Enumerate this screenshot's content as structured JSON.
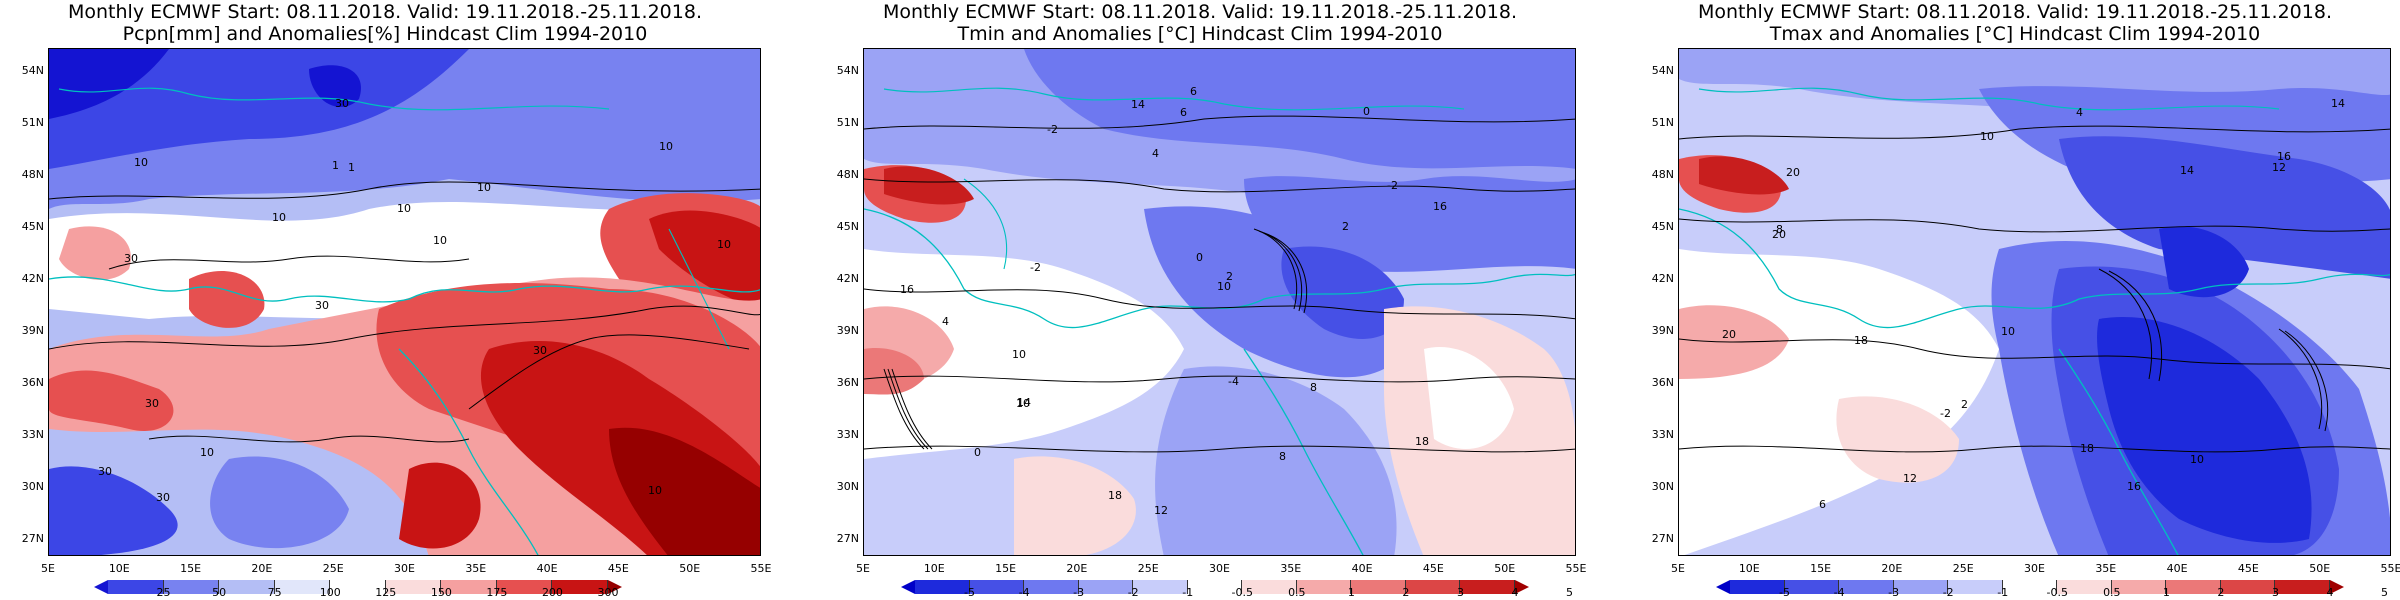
{
  "panels": [
    {
      "title1": "Monthly ECMWF Start: 08.11.2018. Valid: 19.11.2018.-25.11.2018.",
      "title2": "Pcpn[mm] and Anomalies[%] Hindcast Clim 1994-2010",
      "legend_values": [
        "25",
        "50",
        "75",
        "100",
        "125",
        "150",
        "175",
        "200",
        "300"
      ],
      "legend_colors": [
        "#1414d2",
        "#3c46e6",
        "#7882f0",
        "#b4bef5",
        "#e1e6fa",
        "#ffffff",
        "#fadcdc",
        "#f5a0a0",
        "#e65050",
        "#c81414",
        "#960000"
      ],
      "contour_labels": [
        "10",
        "30",
        "10",
        "30",
        "10",
        "30",
        "1",
        "10",
        "30",
        "10",
        "30",
        "10",
        "1",
        "10",
        "30",
        "10",
        "30",
        "10"
      ]
    },
    {
      "title1": "Monthly ECMWF Start: 08.11.2018. Valid: 19.11.2018.-25.11.2018.",
      "title2": "Tmin and Anomalies [°C] Hindcast Clim 1994-2010",
      "legend_values": [
        "-5",
        "-4",
        "-3",
        "-2",
        "-1",
        "-0.5",
        "0.5",
        "1",
        "2",
        "3",
        "4",
        "5"
      ],
      "legend_colors": [
        "#0000c8",
        "#1e2adc",
        "#4650e6",
        "#6e78f0",
        "#9ba3f5",
        "#c8cdfa",
        "#ffffff",
        "#fadcdc",
        "#f5aaaa",
        "#eb7878",
        "#dc4646",
        "#c81e1e",
        "#a00000"
      ],
      "contour_labels": [
        "0",
        "0",
        "-2",
        "-2",
        "-4",
        "-2",
        "10",
        "14",
        "16",
        "2",
        "4",
        "6",
        "8",
        "10",
        "12",
        "14",
        "18",
        "16",
        "10",
        "18",
        "8",
        "6",
        "4",
        "2",
        "0"
      ]
    },
    {
      "title1": "Monthly ECMWF Start: 08.11.2018. Valid: 19.11.2018.-25.11.2018.",
      "title2": "Tmax and Anomalies [°C] Hindcast Clim 1994-2010",
      "legend_values": [
        "-5",
        "-4",
        "-3",
        "-2",
        "-1",
        "-0.5",
        "0.5",
        "1",
        "2",
        "3",
        "4",
        "5"
      ],
      "legend_colors": [
        "#0000c8",
        "#1e2adc",
        "#4650e6",
        "#6e78f0",
        "#9ba3f5",
        "#c8cdfa",
        "#ffffff",
        "#fadcdc",
        "#f5aaaa",
        "#eb7878",
        "#dc4646",
        "#c81e1e",
        "#a00000"
      ],
      "contour_labels": [
        "-2",
        "2",
        "4",
        "6",
        "10",
        "12",
        "14",
        "16",
        "18",
        "20",
        "20",
        "14",
        "12",
        "10",
        "8",
        "16",
        "18",
        "20",
        "10"
      ]
    }
  ],
  "lat_labels": [
    "54N",
    "51N",
    "48N",
    "45N",
    "42N",
    "39N",
    "36N",
    "33N",
    "30N",
    "27N"
  ],
  "lon_labels": [
    "5E",
    "10E",
    "15E",
    "20E",
    "25E",
    "30E",
    "35E",
    "40E",
    "45E",
    "50E",
    "55E"
  ]
}
